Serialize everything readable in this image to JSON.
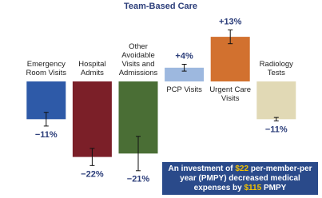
{
  "chart_data": {
    "type": "bar",
    "title": "Team-Based Care",
    "categories": [
      "Emergency Room Visits",
      "Hospital Admits",
      "Other Avoidable Visits and Admissions",
      "PCP Visits",
      "Urgent Care Visits",
      "Radiology Tests"
    ],
    "values": [
      -11,
      -22,
      -21,
      4,
      13,
      -11
    ],
    "value_labels": [
      "−11%",
      "−22%",
      "−21%",
      "+4%",
      "+13%",
      "−11%"
    ],
    "errors": [
      2,
      2.5,
      5,
      1,
      2,
      0.5
    ],
    "colors": [
      "#2e5aa8",
      "#7b1f28",
      "#4a6e35",
      "#9db8df",
      "#d2712f",
      "#e1d9b5"
    ],
    "ylim": [
      -25,
      15
    ],
    "annotation": [
      "An investment of ",
      "$22",
      " per-member-per year (PMPY) decreased medical expenses by ",
      "$115",
      " PMPY"
    ]
  }
}
